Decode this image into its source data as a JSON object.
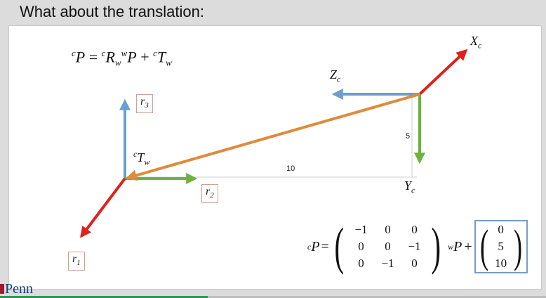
{
  "slide": {
    "title": "What about the translation:"
  },
  "equation_top": {
    "pre_p": "c",
    "p": "P",
    "eq": " = ",
    "pre_r": "c",
    "r": "R",
    "r_sub": "w",
    "pre_wp": "w",
    "wp": "P",
    "plus": " + ",
    "pre_t": "c",
    "t": "T",
    "t_sub": "w"
  },
  "world_frame": {
    "r1": {
      "base": "r",
      "sub": "1"
    },
    "r2": {
      "base": "r",
      "sub": "2"
    },
    "r3": {
      "base": "r",
      "sub": "3"
    },
    "translation": {
      "pre": "c",
      "base": "T",
      "sub": "w"
    }
  },
  "camera_frame": {
    "xc": {
      "base": "X",
      "sub": "c"
    },
    "yc": {
      "base": "Y",
      "sub": "c"
    },
    "zc": {
      "base": "Z",
      "sub": "c"
    }
  },
  "dimensions": {
    "horizontal": "10",
    "vertical": "5"
  },
  "equation_bottom": {
    "lhs_pre": "c",
    "lhs": "P",
    "eq": " = ",
    "matrix": [
      [
        "−1",
        "0",
        "0"
      ],
      [
        "0",
        "0",
        "−1"
      ],
      [
        "0",
        "−1",
        "0"
      ]
    ],
    "mid_pre": "w",
    "mid": "P",
    "plus": " + ",
    "vector": [
      "0",
      "5",
      "10"
    ]
  },
  "colors": {
    "red_axis": "#e0201b",
    "blue_axis": "#6a9fd0",
    "green_axis": "#6db33f",
    "orange_translation": "#e08a3c",
    "vector_box": "#7a9cc4"
  },
  "footer": {
    "logo_text": "Penn",
    "progress_fraction": 0.38
  }
}
